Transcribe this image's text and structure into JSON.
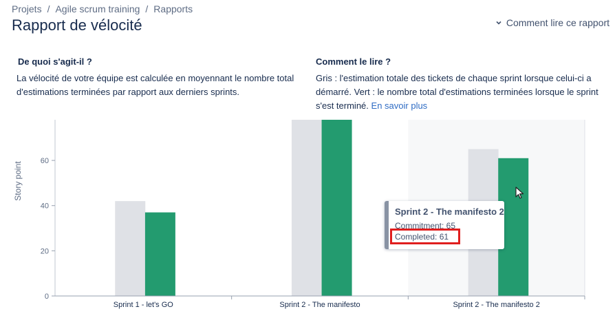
{
  "breadcrumb": {
    "items": [
      "Projets",
      "Agile scrum training",
      "Rapports"
    ],
    "separator": "/"
  },
  "page": {
    "title": "Rapport de vélocité",
    "how_to_read_link": "Comment lire ce rapport"
  },
  "sections": {
    "what": {
      "heading": "De quoi s'agit-il ?",
      "text": "La vélocité de votre équipe est calculée en moyennant le nombre total d'estimations terminées par rapport aux derniers sprints."
    },
    "how": {
      "heading": "Comment le lire ?",
      "text": "Gris : l'estimation totale des tickets de chaque sprint lorsque celui-ci a démarré. Vert : le nombre total d'estimations terminées lorsque le sprint s'est terminé.",
      "learn_more": "En savoir plus"
    }
  },
  "chart_data": {
    "type": "bar",
    "categories": [
      "Sprint 1 - let's GO",
      "Sprint 2 - The manifesto",
      "Sprint 2 - The manifesto 2"
    ],
    "series": [
      {
        "name": "Commitment",
        "color": "#dfe1e6",
        "values": [
          42,
          78,
          65
        ]
      },
      {
        "name": "Completed",
        "color": "#239b6f",
        "values": [
          37,
          78,
          61
        ]
      }
    ],
    "title": "",
    "xlabel": "",
    "ylabel": "Story point",
    "ylim": [
      0,
      78
    ],
    "yticks": [
      0,
      20,
      40,
      60
    ],
    "highlighted_category": "Sprint 2 - The manifesto 2",
    "grid": false
  },
  "tooltip": {
    "title": "Sprint 2 - The manifesto 2",
    "commitment": "Commitment: 65",
    "completed": "Completed: 61"
  },
  "colors": {
    "commitment": "#dfe1e6",
    "completed": "#239b6f",
    "highlight_box": "#e01e1e",
    "link": "#2f6cc4"
  },
  "icons": [
    "chevron-down-icon",
    "mouse-pointer-icon"
  ]
}
